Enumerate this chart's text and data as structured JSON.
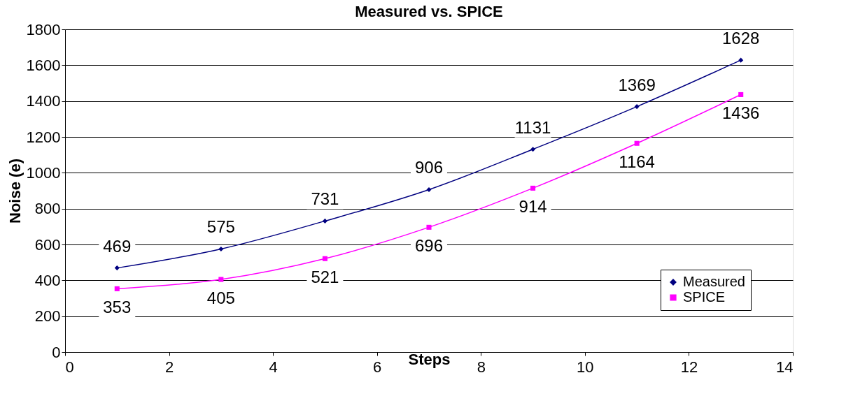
{
  "chart_data": {
    "type": "line",
    "title": "Measured vs. SPICE",
    "xlabel": "Steps",
    "ylabel": "Noise (e)",
    "x": [
      1,
      3,
      5,
      7,
      9,
      11,
      13
    ],
    "series": [
      {
        "name": "Measured",
        "color": "#000080",
        "marker": "diamond",
        "values": [
          469,
          575,
          731,
          906,
          1131,
          1369,
          1628
        ]
      },
      {
        "name": "SPICE",
        "color": "#ff00ff",
        "marker": "square",
        "values": [
          353,
          405,
          521,
          696,
          914,
          1164,
          1436
        ]
      }
    ],
    "xlim": [
      0,
      14
    ],
    "xticks": [
      0,
      2,
      4,
      6,
      8,
      10,
      12,
      14
    ],
    "ylim": [
      0,
      1800
    ],
    "yticks": [
      0,
      200,
      400,
      600,
      800,
      1000,
      1200,
      1400,
      1600,
      1800
    ],
    "grid": "y",
    "legend": "bottom right",
    "data_labels": true,
    "line_style": "solid"
  }
}
